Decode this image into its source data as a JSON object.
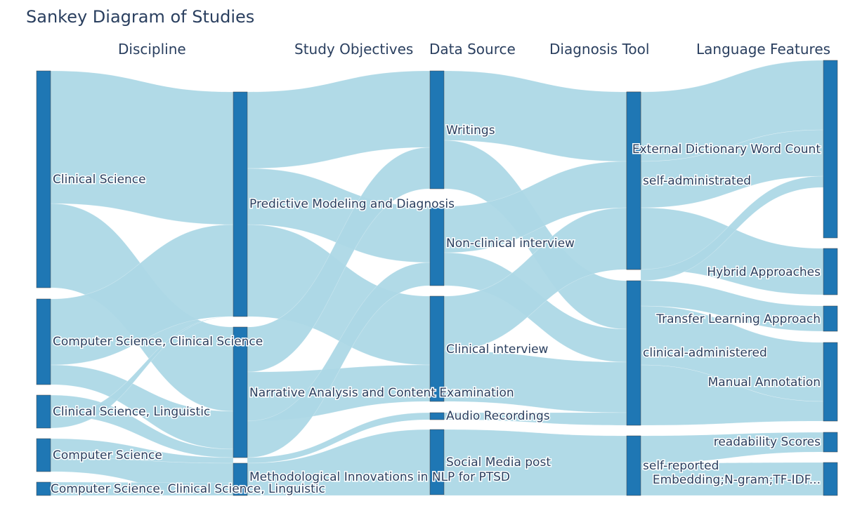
{
  "title": "Sankey Diagram of Studies",
  "columns": [
    "Discipline",
    "Study Objectives",
    "Data Source",
    "Diagnosis Tool",
    "Language Features"
  ],
  "colors": {
    "node": "#1f77b4",
    "link": "#add8e6",
    "text": "#2a3f5f"
  },
  "nodes": [
    {
      "col": 0,
      "label": "Clinical Science"
    },
    {
      "col": 0,
      "label": "Computer Science, Clinical Science"
    },
    {
      "col": 0,
      "label": "Clinical Science, Linguistic"
    },
    {
      "col": 0,
      "label": "Computer Science"
    },
    {
      "col": 0,
      "label": "Computer Science, Clinical Science, Linguistic"
    },
    {
      "col": 1,
      "label": "Predictive Modeling and Diagnosis"
    },
    {
      "col": 1,
      "label": "Narrative Analysis and Content Examination"
    },
    {
      "col": 1,
      "label": "Methodological Innovations in NLP for PTSD"
    },
    {
      "col": 2,
      "label": "Writings"
    },
    {
      "col": 2,
      "label": "Non-clinical interview"
    },
    {
      "col": 2,
      "label": "Clinical interview"
    },
    {
      "col": 2,
      "label": "Audio Recordings"
    },
    {
      "col": 2,
      "label": "Social Media post"
    },
    {
      "col": 3,
      "label": "External Dictionary Word Count"
    },
    {
      "col": 3,
      "label": "self-administrated"
    },
    {
      "col": 3,
      "label": "clinical-administered"
    },
    {
      "col": 3,
      "label": "self-reported"
    },
    {
      "col": 4,
      "label": "Hybrid Approaches"
    },
    {
      "col": 4,
      "label": "Transfer Learning Approach"
    },
    {
      "col": 4,
      "label": "Manual Annotation"
    },
    {
      "col": 4,
      "label": "readability Scores"
    },
    {
      "col": 4,
      "label": "Embedding;N-gram;TF-IDF..."
    }
  ]
}
